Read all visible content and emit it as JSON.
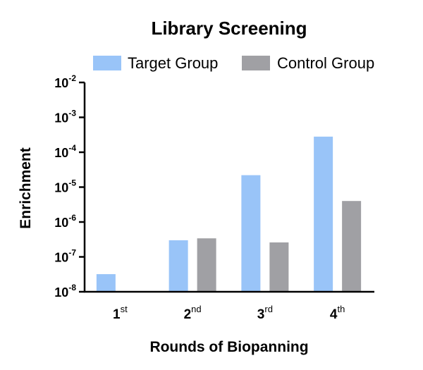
{
  "chart_data": {
    "type": "bar",
    "title": "Library Screening",
    "xlabel": "Rounds of Biopanning",
    "ylabel": "Enrichment",
    "y_scale": "log",
    "ylim": [
      1e-08,
      0.01
    ],
    "grid": false,
    "legend_position": "top",
    "y_ticks": [
      {
        "value": 1e-08,
        "base": "10",
        "exp": "-8"
      },
      {
        "value": 1e-07,
        "base": "10",
        "exp": "-7"
      },
      {
        "value": 1e-06,
        "base": "10",
        "exp": "-6"
      },
      {
        "value": 1e-05,
        "base": "10",
        "exp": "-5"
      },
      {
        "value": 0.0001,
        "base": "10",
        "exp": "-4"
      },
      {
        "value": 0.001,
        "base": "10",
        "exp": "-3"
      },
      {
        "value": 0.01,
        "base": "10",
        "exp": "-2"
      }
    ],
    "categories": [
      {
        "num": "1",
        "sup": "st"
      },
      {
        "num": "2",
        "sup": "nd"
      },
      {
        "num": "3",
        "sup": "rd"
      },
      {
        "num": "4",
        "sup": "th"
      }
    ],
    "series": [
      {
        "name": "Target Group",
        "color": "#99c4f8",
        "values": [
          3.2e-08,
          3e-07,
          2.2e-05,
          0.00028
        ]
      },
      {
        "name": "Control Group",
        "color": "#a0a0a4",
        "values": [
          null,
          3.4e-07,
          2.6e-07,
          4e-06
        ]
      }
    ]
  }
}
